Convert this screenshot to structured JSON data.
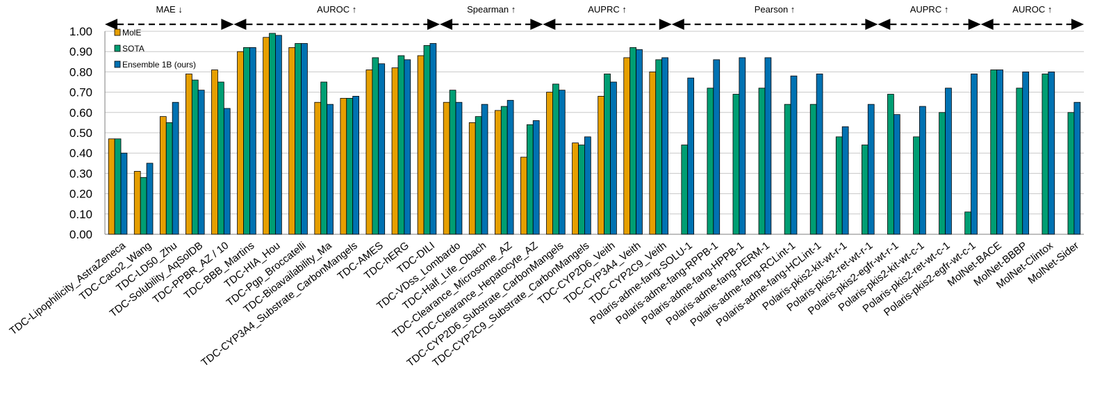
{
  "chart_data": {
    "type": "bar",
    "title": "",
    "xlabel": "",
    "ylabel": "",
    "ylim": [
      0,
      1
    ],
    "yticks": [
      "0.00",
      "0.10",
      "0.20",
      "0.30",
      "0.40",
      "0.50",
      "0.60",
      "0.70",
      "0.80",
      "0.90",
      "1.00"
    ],
    "grid": true,
    "legend_position": "top-left",
    "categories": [
      "TDC-Lipophilicity_AstraZeneca",
      "TDC-Caco2_Wang",
      "TDC-LD50_Zhu",
      "TDC-Solubility_AqSolDB",
      "TDC-PPBR_AZ / 10",
      "TDC-BBB_Martins",
      "TDC-HIA_Hou",
      "TDC-Pgp_Broccatelli",
      "TDC-Bioavailability_Ma",
      "TDC-CYP3A4_Substrate_CarbonMangels",
      "TDC-AMES",
      "TDC-hERG",
      "TDC-DILI",
      "TDC-VDss_Lombardo",
      "TDC-Half_Life_Obach",
      "TDC-Clearance_Microsome_AZ",
      "TDC-Clearance_Hepatocyte_AZ",
      "TDC-CYP2D6_Substrate_CarbonMangels",
      "TDC-CYP2C9_Substrate_CarbonMangels",
      "TDC-CYP2D6_Veith",
      "TDC-CYP3A4_Veith",
      "TDC-CYP2C9_Veith",
      "Polaris-adme-fang-SOLU-1",
      "Polaris-adme-fang-RPPB-1",
      "Polaris-adme-fang-HPPB-1",
      "Polaris-adme-fang-PERM-1",
      "Polaris-adme-fang-RCLint-1",
      "Polaris-adme-fang-HCLint-1",
      "Polaris-pkis2-kit-wt-r-1",
      "Polaris-pkis2-ret-wt-r-1",
      "Polaris-pkis2-egfr-wt-r-1",
      "Polaris-pkis2-kit-wt-c-1",
      "Polaris-pkis2-ret-wt-c-1",
      "Polaris-pkis2-egfr-wt-c-1",
      "MolNet-BACE",
      "MolNet-BBBP",
      "MolNet-Clintox",
      "MolNet-Sider"
    ],
    "series": [
      {
        "name": "MolE",
        "color": "#E69F00",
        "values": [
          0.47,
          0.31,
          0.58,
          0.79,
          0.81,
          0.9,
          0.97,
          0.92,
          0.65,
          0.67,
          0.81,
          0.82,
          0.88,
          0.65,
          0.55,
          0.61,
          0.38,
          0.7,
          0.45,
          0.68,
          0.87,
          0.8,
          null,
          null,
          null,
          null,
          null,
          null,
          null,
          null,
          null,
          null,
          null,
          null,
          null,
          null,
          null,
          null
        ]
      },
      {
        "name": "SOTA",
        "color": "#009E73",
        "values": [
          0.47,
          0.28,
          0.55,
          0.76,
          0.75,
          0.92,
          0.99,
          0.94,
          0.75,
          0.67,
          0.87,
          0.88,
          0.93,
          0.71,
          0.58,
          0.63,
          0.54,
          0.74,
          0.44,
          0.79,
          0.92,
          0.86,
          0.44,
          0.72,
          0.69,
          0.72,
          0.64,
          0.64,
          0.48,
          0.44,
          0.69,
          0.48,
          0.6,
          0.11,
          0.81,
          0.72,
          0.79,
          0.6
        ]
      },
      {
        "name": "Ensemble 1B (ours)",
        "color": "#0072B2",
        "values": [
          0.4,
          0.35,
          0.65,
          0.71,
          0.62,
          0.92,
          0.98,
          0.94,
          0.64,
          0.68,
          0.84,
          0.86,
          0.94,
          0.65,
          0.64,
          0.66,
          0.56,
          0.71,
          0.48,
          0.75,
          0.91,
          0.87,
          0.77,
          0.86,
          0.87,
          0.87,
          0.78,
          0.79,
          0.53,
          0.64,
          0.59,
          0.63,
          0.72,
          0.79,
          0.81,
          0.8,
          0.8,
          0.65
        ]
      }
    ],
    "metric_groups": [
      {
        "label": "MAE ↓",
        "start": 0,
        "end": 4
      },
      {
        "label": "AUROC ↑",
        "start": 5,
        "end": 12
      },
      {
        "label": "Spearman ↑",
        "start": 13,
        "end": 16
      },
      {
        "label": "AUPRC ↑",
        "start": 17,
        "end": 21
      },
      {
        "label": "Pearson ↑",
        "start": 22,
        "end": 29
      },
      {
        "label": "AUPRC ↑",
        "start": 30,
        "end": 33
      },
      {
        "label": "AUROC ↑",
        "start": 34,
        "end": 37
      }
    ]
  }
}
